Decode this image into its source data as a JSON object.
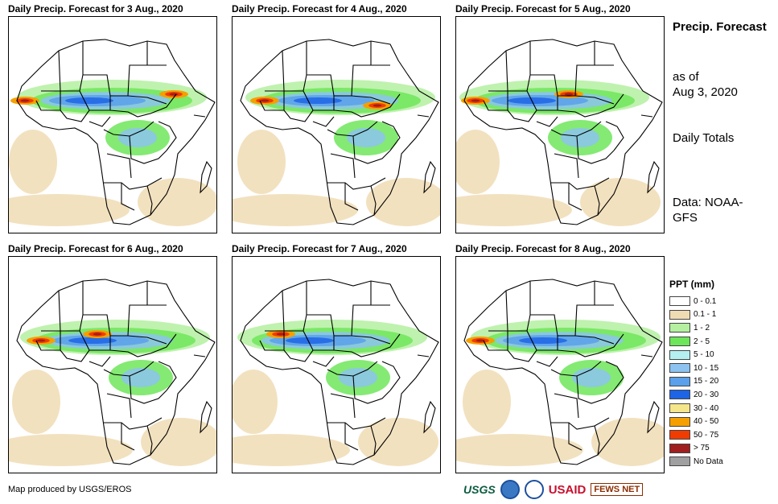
{
  "panels": [
    {
      "title": "Daily Precip. Forecast for 3 Aug., 2020"
    },
    {
      "title": "Daily Precip. Forecast for 4 Aug., 2020"
    },
    {
      "title": "Daily Precip. Forecast for 5 Aug., 2020"
    },
    {
      "title": "Daily Precip. Forecast for 6 Aug., 2020"
    },
    {
      "title": "Daily Precip. Forecast for 7 Aug., 2020"
    },
    {
      "title": "Daily Precip. Forecast for 8 Aug., 2020"
    }
  ],
  "side": {
    "title": "Precip. Forecast",
    "as_of": "as of",
    "as_of_date": "Aug 3, 2020",
    "daily": "Daily Totals",
    "data_source": "Data: NOAA-GFS"
  },
  "legend": {
    "title": "PPT (mm)",
    "items": [
      {
        "label": "0 - 0.1",
        "color": "#ffffff"
      },
      {
        "label": "0.1 - 1",
        "color": "#f0dcb4"
      },
      {
        "label": "1 - 2",
        "color": "#b4f0a0"
      },
      {
        "label": "2 - 5",
        "color": "#6ee65a"
      },
      {
        "label": "5 - 10",
        "color": "#b4f0f0"
      },
      {
        "label": "10 - 15",
        "color": "#8cc3f0"
      },
      {
        "label": "15 - 20",
        "color": "#5aa0eb"
      },
      {
        "label": "20 - 30",
        "color": "#1e64e6"
      },
      {
        "label": "30 - 40",
        "color": "#f5e68c"
      },
      {
        "label": "40 - 50",
        "color": "#f5a000"
      },
      {
        "label": "50 - 75",
        "color": "#f03c00"
      },
      {
        "label": "> 75",
        "color": "#a01e1e"
      },
      {
        "label": "No Data",
        "color": "#a0a0a0"
      }
    ]
  },
  "footer": {
    "credit": "Map produced by USGS/EROS",
    "logos": {
      "usgs": "USGS",
      "usaid": "USAID",
      "fews": "FEWS NET"
    }
  }
}
